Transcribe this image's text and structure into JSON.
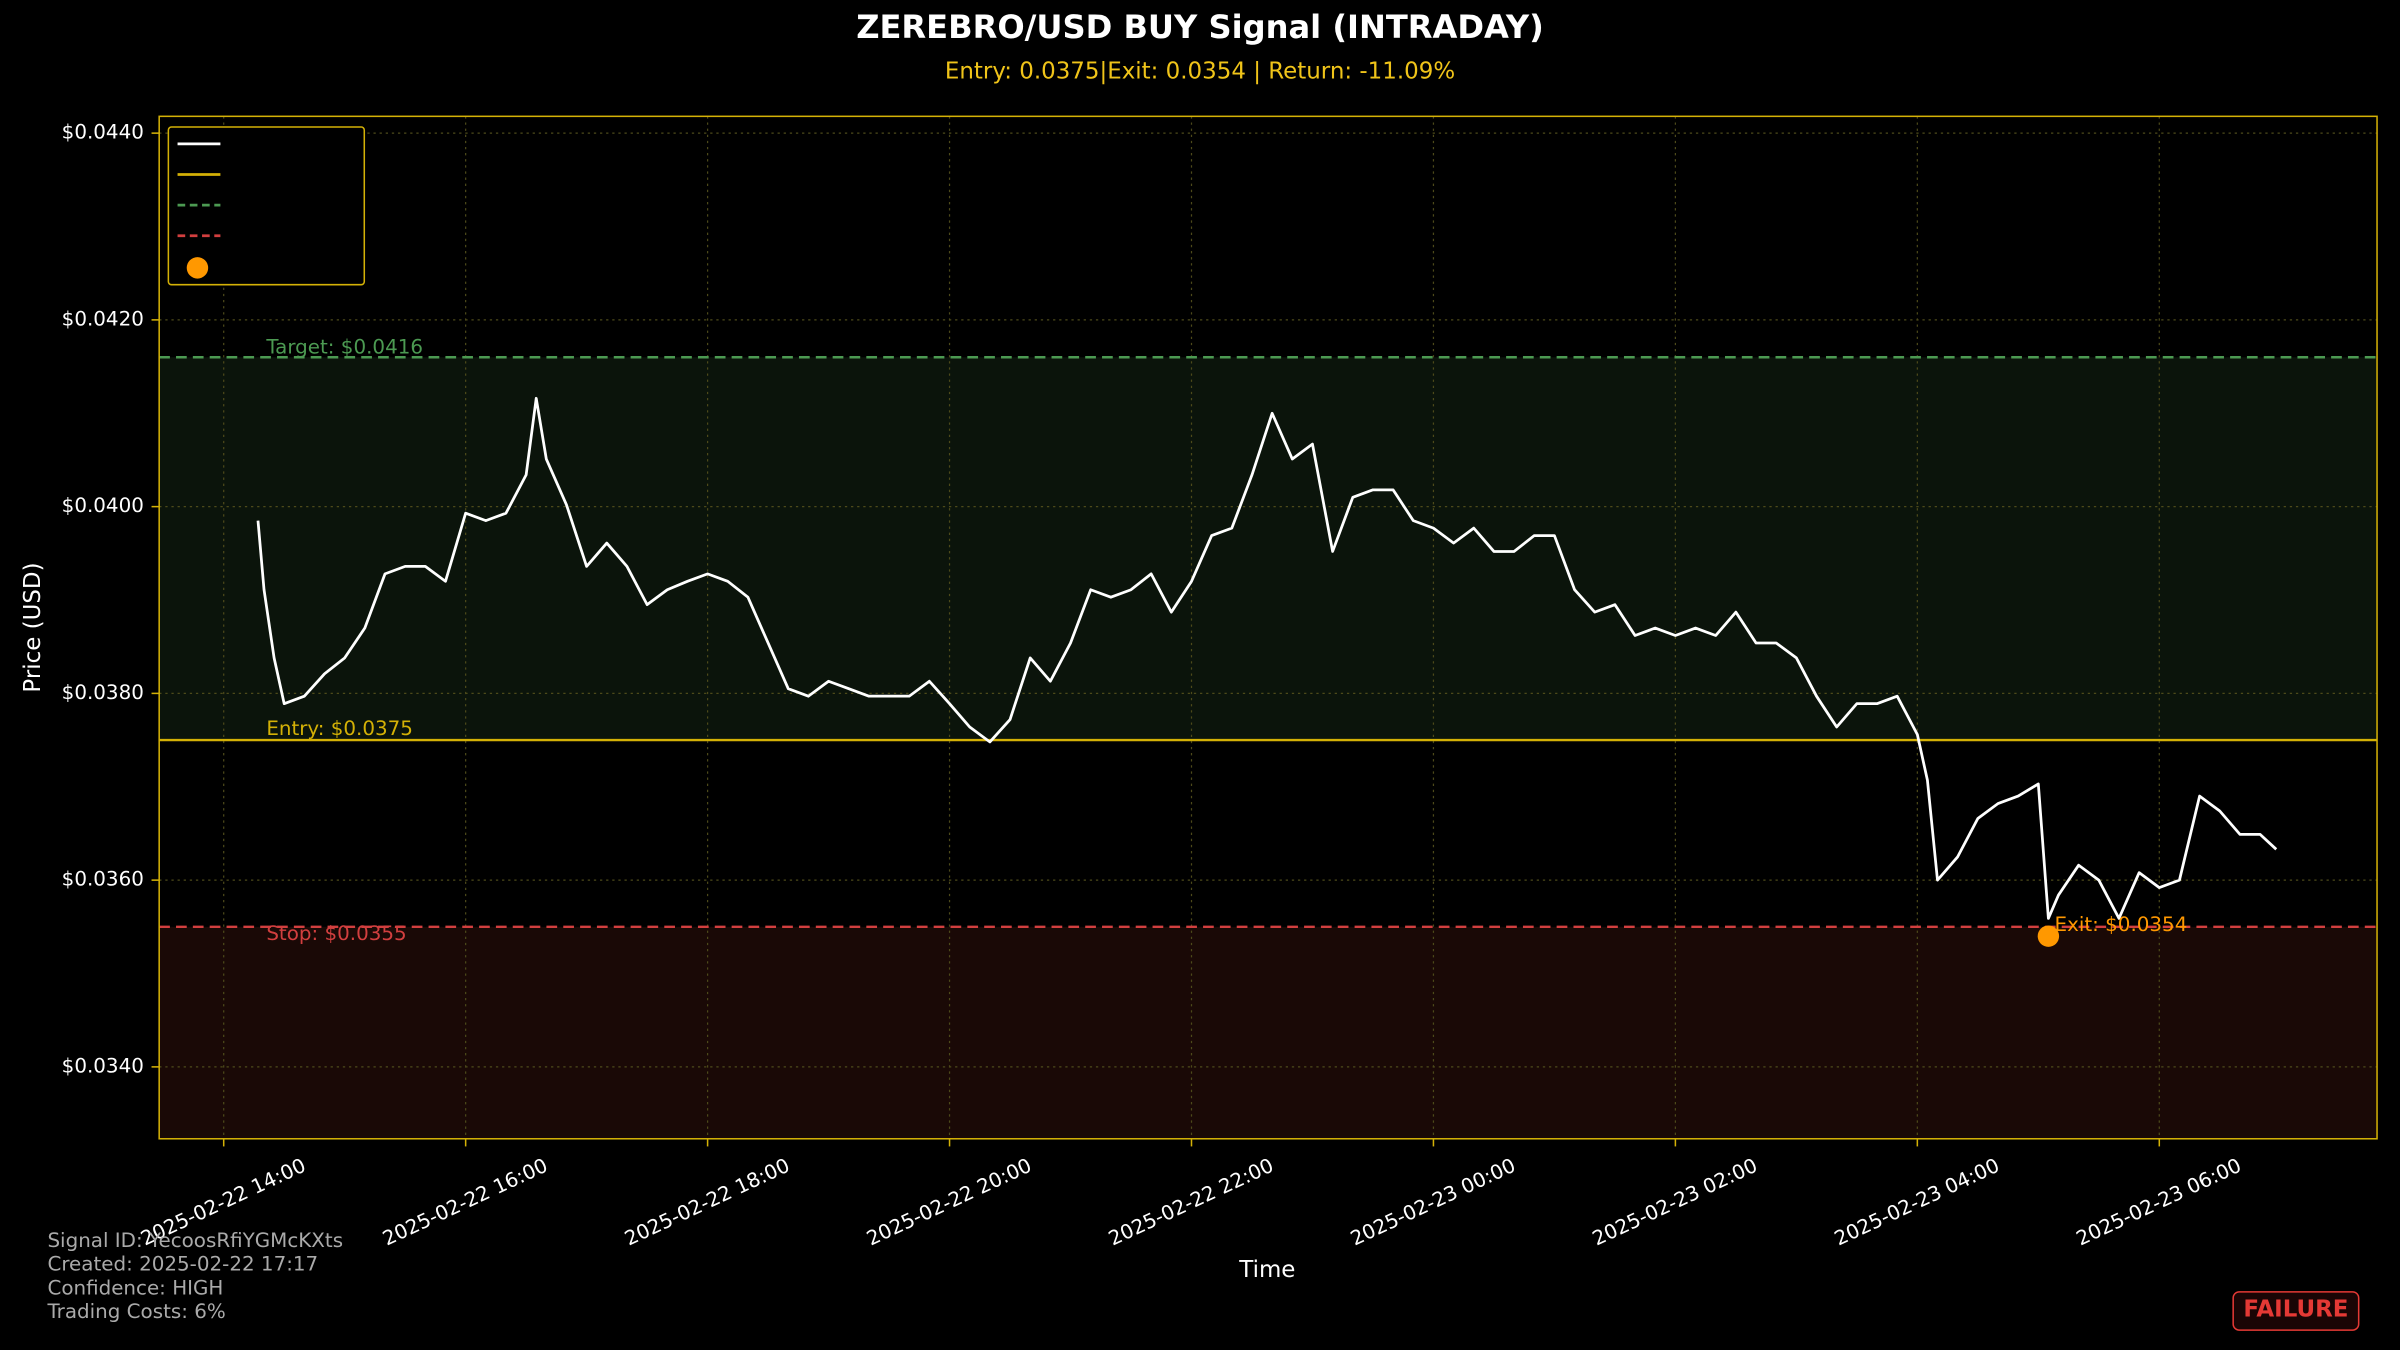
{
  "chart_data": {
    "type": "line",
    "title": "ZEREBRO/USD BUY Signal (INTRADAY)",
    "subtitle": "Entry: 0.0375|Exit: 0.0354 | Return: -11.09%",
    "x_label": "Time",
    "y_label": "Price (USD)",
    "xlim": [
      "2025-02-22 13:28",
      "2025-02-23 07:48"
    ],
    "xticks": [
      "2025-02-22 14:00",
      "2025-02-22 16:00",
      "2025-02-22 18:00",
      "2025-02-22 20:00",
      "2025-02-22 22:00",
      "2025-02-23 00:00",
      "2025-02-23 02:00",
      "2025-02-23 04:00",
      "2025-02-23 06:00"
    ],
    "ylim": [
      0.03323,
      0.04418
    ],
    "yticks": [
      {
        "value": 0.034,
        "label": "$0.0340"
      },
      {
        "value": 0.036,
        "label": "$0.0360"
      },
      {
        "value": 0.038,
        "label": "$0.0380"
      },
      {
        "value": 0.04,
        "label": "$0.0400"
      },
      {
        "value": 0.042,
        "label": "$0.0420"
      },
      {
        "value": 0.044,
        "label": "$0.0440"
      }
    ],
    "grid": true,
    "legend": "upper left",
    "x": [
      "2025-02-22 14:17",
      "2025-02-22 14:20",
      "2025-02-22 14:25",
      "2025-02-22 14:30",
      "2025-02-22 14:40",
      "2025-02-22 14:50",
      "2025-02-22 15:00",
      "2025-02-22 15:10",
      "2025-02-22 15:20",
      "2025-02-22 15:30",
      "2025-02-22 15:40",
      "2025-02-22 15:50",
      "2025-02-22 16:00",
      "2025-02-22 16:10",
      "2025-02-22 16:20",
      "2025-02-22 16:30",
      "2025-02-22 16:35",
      "2025-02-22 16:40",
      "2025-02-22 16:50",
      "2025-02-22 17:00",
      "2025-02-22 17:10",
      "2025-02-22 17:20",
      "2025-02-22 17:30",
      "2025-02-22 17:40",
      "2025-02-22 17:50",
      "2025-02-22 18:00",
      "2025-02-22 18:10",
      "2025-02-22 18:20",
      "2025-02-22 18:30",
      "2025-02-22 18:40",
      "2025-02-22 18:50",
      "2025-02-22 19:00",
      "2025-02-22 19:10",
      "2025-02-22 19:20",
      "2025-02-22 19:30",
      "2025-02-22 19:40",
      "2025-02-22 19:50",
      "2025-02-22 20:00",
      "2025-02-22 20:10",
      "2025-02-22 20:20",
      "2025-02-22 20:30",
      "2025-02-22 20:40",
      "2025-02-22 20:50",
      "2025-02-22 21:00",
      "2025-02-22 21:10",
      "2025-02-22 21:20",
      "2025-02-22 21:30",
      "2025-02-22 21:40",
      "2025-02-22 21:50",
      "2025-02-22 22:00",
      "2025-02-22 22:10",
      "2025-02-22 22:20",
      "2025-02-22 22:30",
      "2025-02-22 22:40",
      "2025-02-22 22:50",
      "2025-02-22 23:00",
      "2025-02-22 23:10",
      "2025-02-22 23:20",
      "2025-02-22 23:30",
      "2025-02-22 23:40",
      "2025-02-22 23:50",
      "2025-02-23 00:00",
      "2025-02-23 00:10",
      "2025-02-23 00:20",
      "2025-02-23 00:30",
      "2025-02-23 00:40",
      "2025-02-23 00:50",
      "2025-02-23 01:00",
      "2025-02-23 01:10",
      "2025-02-23 01:20",
      "2025-02-23 01:30",
      "2025-02-23 01:40",
      "2025-02-23 01:50",
      "2025-02-23 02:00",
      "2025-02-23 02:10",
      "2025-02-23 02:20",
      "2025-02-23 02:30",
      "2025-02-23 02:40",
      "2025-02-23 02:50",
      "2025-02-23 03:00",
      "2025-02-23 03:10",
      "2025-02-23 03:20",
      "2025-02-23 03:30",
      "2025-02-23 03:40",
      "2025-02-23 03:50",
      "2025-02-23 04:00",
      "2025-02-23 04:05",
      "2025-02-23 04:10",
      "2025-02-23 04:20",
      "2025-02-23 04:30",
      "2025-02-23 04:40",
      "2025-02-23 04:50",
      "2025-02-23 05:00",
      "2025-02-23 05:05",
      "2025-02-23 05:10",
      "2025-02-23 05:20",
      "2025-02-23 05:30",
      "2025-02-23 05:40",
      "2025-02-23 05:50",
      "2025-02-23 06:00",
      "2025-02-23 06:10",
      "2025-02-23 06:20",
      "2025-02-23 06:30",
      "2025-02-23 06:40",
      "2025-02-23 06:50",
      "2025-02-23 06:58"
    ],
    "series": [
      {
        "color": "#ffffff",
        "values": [
          0.03985,
          0.03911,
          0.03838,
          0.03789,
          0.03797,
          0.03821,
          0.03838,
          0.0387,
          0.03928,
          0.03936,
          0.03936,
          0.0392,
          0.03993,
          0.03985,
          0.03993,
          0.04034,
          0.04116,
          0.04051,
          0.04002,
          0.03936,
          0.03961,
          0.03936,
          0.03895,
          0.03911,
          0.0392,
          0.03928,
          0.0392,
          0.03903,
          0.03854,
          0.03805,
          0.03797,
          0.03813,
          0.03805,
          0.03797,
          0.03797,
          0.03797,
          0.03813,
          0.03789,
          0.03764,
          0.03748,
          0.03772,
          0.03838,
          0.03813,
          0.03854,
          0.03911,
          0.03903,
          0.03911,
          0.03928,
          0.03887,
          0.0392,
          0.03969,
          0.03977,
          0.04034,
          0.041,
          0.04051,
          0.04067,
          0.03952,
          0.0401,
          0.04018,
          0.04018,
          0.03985,
          0.03977,
          0.03961,
          0.03977,
          0.03952,
          0.03952,
          0.03969,
          0.03969,
          0.03911,
          0.03887,
          0.03895,
          0.03862,
          0.0387,
          0.03862,
          0.0387,
          0.03862,
          0.03887,
          0.03854,
          0.03854,
          0.03838,
          0.03797,
          0.03764,
          0.03789,
          0.03789,
          0.03797,
          0.03756,
          0.03707,
          0.036,
          0.03625,
          0.03666,
          0.03682,
          0.0369,
          0.03703,
          0.03559,
          0.03584,
          0.03616,
          0.036,
          0.03559,
          0.03608,
          0.03592,
          0.036,
          0.0369,
          0.03674,
          0.03649,
          0.03649,
          0.03633
        ]
      }
    ],
    "levels": [
      {
        "value": 0.0375,
        "color": "#d4b106",
        "style": "solid",
        "label": "Entry: $0.0375"
      },
      {
        "value": 0.0416,
        "color": "#4c9a52",
        "style": "dashed",
        "label": "Target: $0.0416"
      },
      {
        "value": 0.0355,
        "color": "#d23f3f",
        "style": "dashed",
        "label": "Stop: $0.0355"
      }
    ],
    "exit": {
      "x": "2025-02-23 05:05",
      "y": 0.0354,
      "color": "#ff9800",
      "label": "Exit: $0.0354"
    },
    "footer": [
      "Signal ID: YecoosRfiYGMcKXts",
      "Created: 2025-02-22 17:17",
      "Confidence: HIGH",
      "Trading Costs: 6%"
    ],
    "badge": "FAILURE"
  }
}
